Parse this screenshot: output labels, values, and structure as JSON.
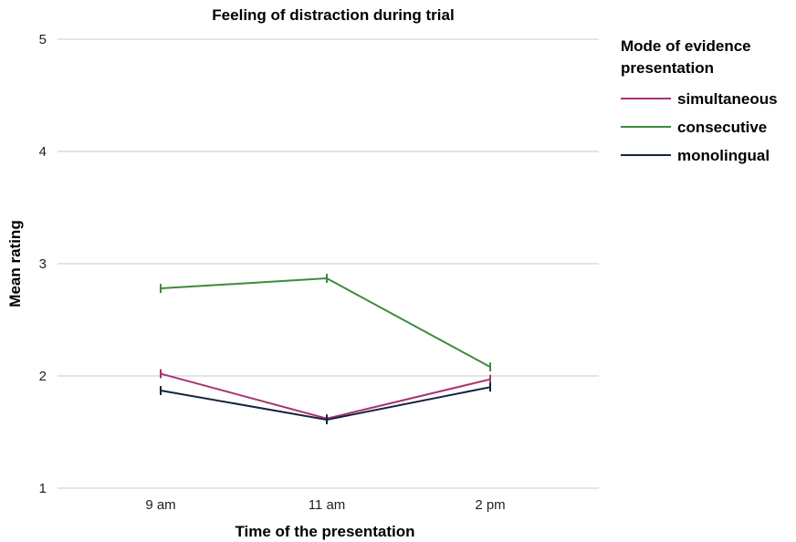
{
  "chart_data": {
    "type": "line",
    "title": "Feeling of distraction during trial",
    "xlabel": "Time of the presentation",
    "ylabel": "Mean rating",
    "categories": [
      "9 am",
      "11 am",
      "2 pm"
    ],
    "ylim": [
      1,
      5
    ],
    "yticks": [
      1,
      2,
      3,
      4,
      5
    ],
    "grid": true,
    "legend": {
      "title": "Mode of evidence presentation",
      "title_lines": [
        "Mode of evidence",
        "presentation"
      ],
      "placement": "right"
    },
    "series": [
      {
        "name": "simultaneous",
        "color": "#a8336e",
        "values": [
          2.02,
          1.62,
          1.97
        ],
        "err": [
          0.04,
          0.04,
          0.04
        ]
      },
      {
        "name": "consecutive",
        "color": "#3f8a3c",
        "values": [
          2.78,
          2.87,
          2.08
        ],
        "err": [
          0.04,
          0.04,
          0.04
        ]
      },
      {
        "name": "monolingual",
        "color": "#15243f",
        "values": [
          1.87,
          1.61,
          1.9
        ],
        "err": [
          0.04,
          0.04,
          0.04
        ]
      }
    ]
  }
}
